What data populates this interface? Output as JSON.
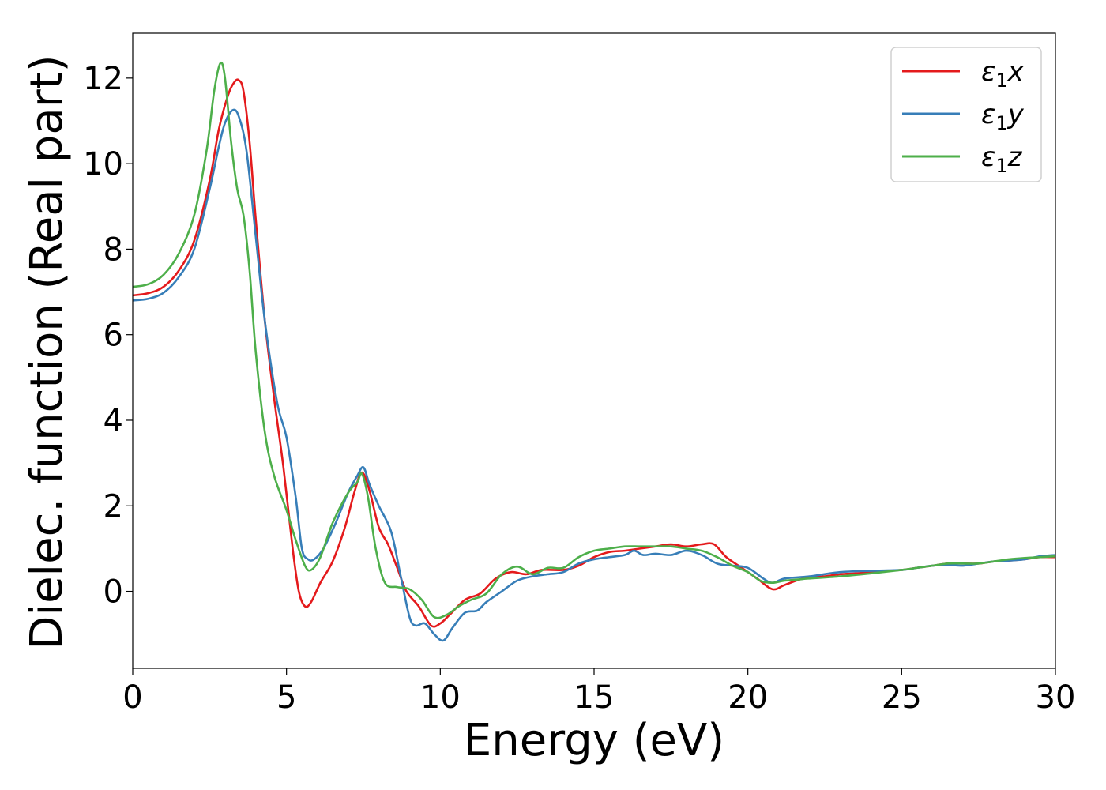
{
  "chart_data": {
    "type": "line",
    "xlabel": "Energy (eV)",
    "ylabel": "Dielec. function (Real part)",
    "xlim": [
      0,
      30
    ],
    "ylim": [
      -1.8,
      13.05
    ],
    "xticks": [
      0,
      5,
      10,
      15,
      20,
      25,
      30
    ],
    "yticks": [
      0,
      2,
      4,
      6,
      8,
      10,
      12
    ],
    "grid": false,
    "legend_position": "top-right",
    "series": [
      {
        "name": "ε₁x",
        "legend_base": "ε",
        "legend_sub": "1",
        "legend_suffix": "x",
        "color": "#e41a1c",
        "points": [
          [
            0,
            6.92
          ],
          [
            0.5,
            6.97
          ],
          [
            1,
            7.12
          ],
          [
            1.5,
            7.5
          ],
          [
            2,
            8.2
          ],
          [
            2.5,
            9.6
          ],
          [
            2.8,
            10.8
          ],
          [
            3.1,
            11.6
          ],
          [
            3.3,
            11.9
          ],
          [
            3.45,
            11.95
          ],
          [
            3.6,
            11.7
          ],
          [
            3.8,
            10.5
          ],
          [
            4.0,
            8.7
          ],
          [
            4.3,
            6.3
          ],
          [
            4.6,
            4.5
          ],
          [
            4.9,
            2.9
          ],
          [
            5.2,
            1.0
          ],
          [
            5.4,
            0.0
          ],
          [
            5.6,
            -0.35
          ],
          [
            5.8,
            -0.25
          ],
          [
            6.1,
            0.2
          ],
          [
            6.5,
            0.7
          ],
          [
            6.9,
            1.5
          ],
          [
            7.2,
            2.3
          ],
          [
            7.45,
            2.78
          ],
          [
            7.7,
            2.35
          ],
          [
            8.0,
            1.5
          ],
          [
            8.3,
            1.1
          ],
          [
            8.6,
            0.55
          ],
          [
            8.9,
            0.0
          ],
          [
            9.3,
            -0.35
          ],
          [
            9.7,
            -0.8
          ],
          [
            10.0,
            -0.75
          ],
          [
            10.3,
            -0.55
          ],
          [
            10.8,
            -0.2
          ],
          [
            11.3,
            -0.05
          ],
          [
            11.8,
            0.3
          ],
          [
            12.3,
            0.45
          ],
          [
            12.8,
            0.4
          ],
          [
            13.3,
            0.5
          ],
          [
            14.0,
            0.5
          ],
          [
            14.5,
            0.6
          ],
          [
            15.0,
            0.8
          ],
          [
            15.5,
            0.92
          ],
          [
            16.0,
            0.95
          ],
          [
            16.5,
            1.0
          ],
          [
            17.0,
            1.05
          ],
          [
            17.5,
            1.1
          ],
          [
            18.0,
            1.05
          ],
          [
            18.5,
            1.1
          ],
          [
            18.9,
            1.1
          ],
          [
            19.3,
            0.8
          ],
          [
            19.8,
            0.55
          ],
          [
            20.3,
            0.3
          ],
          [
            20.8,
            0.05
          ],
          [
            21.2,
            0.15
          ],
          [
            21.8,
            0.3
          ],
          [
            22.5,
            0.35
          ],
          [
            23.0,
            0.4
          ],
          [
            23.5,
            0.42
          ],
          [
            24.0,
            0.45
          ],
          [
            24.5,
            0.48
          ],
          [
            25.0,
            0.5
          ],
          [
            25.5,
            0.55
          ],
          [
            26.0,
            0.6
          ],
          [
            26.5,
            0.65
          ],
          [
            27.0,
            0.65
          ],
          [
            27.5,
            0.65
          ],
          [
            28.0,
            0.7
          ],
          [
            28.5,
            0.72
          ],
          [
            29.0,
            0.75
          ],
          [
            29.5,
            0.8
          ],
          [
            30.0,
            0.8
          ]
        ]
      },
      {
        "name": "ε₁y",
        "legend_base": "ε",
        "legend_sub": "1",
        "legend_suffix": "y",
        "color": "#377eb8",
        "points": [
          [
            0,
            6.8
          ],
          [
            0.5,
            6.84
          ],
          [
            1,
            6.98
          ],
          [
            1.5,
            7.35
          ],
          [
            2,
            8.0
          ],
          [
            2.5,
            9.4
          ],
          [
            2.8,
            10.4
          ],
          [
            3.0,
            10.95
          ],
          [
            3.25,
            11.25
          ],
          [
            3.45,
            11.1
          ],
          [
            3.7,
            10.3
          ],
          [
            4.0,
            8.3
          ],
          [
            4.3,
            6.3
          ],
          [
            4.7,
            4.4
          ],
          [
            5.0,
            3.6
          ],
          [
            5.3,
            2.2
          ],
          [
            5.5,
            1.0
          ],
          [
            5.7,
            0.75
          ],
          [
            5.9,
            0.75
          ],
          [
            6.2,
            1.0
          ],
          [
            6.6,
            1.6
          ],
          [
            7.0,
            2.3
          ],
          [
            7.3,
            2.7
          ],
          [
            7.5,
            2.9
          ],
          [
            7.7,
            2.5
          ],
          [
            8.0,
            2.0
          ],
          [
            8.4,
            1.4
          ],
          [
            8.7,
            0.4
          ],
          [
            9.0,
            -0.6
          ],
          [
            9.2,
            -0.8
          ],
          [
            9.5,
            -0.75
          ],
          [
            9.8,
            -1.0
          ],
          [
            10.1,
            -1.15
          ],
          [
            10.4,
            -0.85
          ],
          [
            10.8,
            -0.5
          ],
          [
            11.2,
            -0.45
          ],
          [
            11.5,
            -0.25
          ],
          [
            12.0,
            0.0
          ],
          [
            12.5,
            0.25
          ],
          [
            13.0,
            0.35
          ],
          [
            13.5,
            0.4
          ],
          [
            14.0,
            0.45
          ],
          [
            14.5,
            0.65
          ],
          [
            15.0,
            0.75
          ],
          [
            15.5,
            0.8
          ],
          [
            16.0,
            0.85
          ],
          [
            16.3,
            0.95
          ],
          [
            16.6,
            0.85
          ],
          [
            17.0,
            0.88
          ],
          [
            17.5,
            0.85
          ],
          [
            18.0,
            0.95
          ],
          [
            18.5,
            0.85
          ],
          [
            19.0,
            0.65
          ],
          [
            19.5,
            0.6
          ],
          [
            20.0,
            0.55
          ],
          [
            20.5,
            0.3
          ],
          [
            20.8,
            0.2
          ],
          [
            21.2,
            0.3
          ],
          [
            22.0,
            0.35
          ],
          [
            23.0,
            0.45
          ],
          [
            24.0,
            0.48
          ],
          [
            25.0,
            0.5
          ],
          [
            25.5,
            0.55
          ],
          [
            26.0,
            0.6
          ],
          [
            26.5,
            0.62
          ],
          [
            27.0,
            0.6
          ],
          [
            27.5,
            0.65
          ],
          [
            28.0,
            0.7
          ],
          [
            28.5,
            0.72
          ],
          [
            29.0,
            0.75
          ],
          [
            29.5,
            0.82
          ],
          [
            30.0,
            0.85
          ]
        ]
      },
      {
        "name": "ε₁z",
        "legend_base": "ε",
        "legend_sub": "1",
        "legend_suffix": "z",
        "color": "#4daf4a",
        "points": [
          [
            0,
            7.12
          ],
          [
            0.5,
            7.18
          ],
          [
            1,
            7.4
          ],
          [
            1.5,
            7.9
          ],
          [
            2,
            8.8
          ],
          [
            2.4,
            10.3
          ],
          [
            2.65,
            11.7
          ],
          [
            2.85,
            12.35
          ],
          [
            3.0,
            12.0
          ],
          [
            3.2,
            10.5
          ],
          [
            3.4,
            9.4
          ],
          [
            3.6,
            8.8
          ],
          [
            3.8,
            7.5
          ],
          [
            4.0,
            5.6
          ],
          [
            4.3,
            3.7
          ],
          [
            4.6,
            2.7
          ],
          [
            5.0,
            1.9
          ],
          [
            5.3,
            1.2
          ],
          [
            5.6,
            0.6
          ],
          [
            5.8,
            0.5
          ],
          [
            6.1,
            0.8
          ],
          [
            6.5,
            1.6
          ],
          [
            7.0,
            2.3
          ],
          [
            7.3,
            2.55
          ],
          [
            7.45,
            2.75
          ],
          [
            7.65,
            2.2
          ],
          [
            7.9,
            1.0
          ],
          [
            8.2,
            0.2
          ],
          [
            8.6,
            0.1
          ],
          [
            9.0,
            0.05
          ],
          [
            9.4,
            -0.2
          ],
          [
            9.8,
            -0.6
          ],
          [
            10.2,
            -0.55
          ],
          [
            10.6,
            -0.35
          ],
          [
            11.0,
            -0.2
          ],
          [
            11.5,
            -0.05
          ],
          [
            12.0,
            0.4
          ],
          [
            12.5,
            0.58
          ],
          [
            13.0,
            0.4
          ],
          [
            13.5,
            0.55
          ],
          [
            14.0,
            0.55
          ],
          [
            14.5,
            0.8
          ],
          [
            15.0,
            0.95
          ],
          [
            15.5,
            1.0
          ],
          [
            16.0,
            1.05
          ],
          [
            16.5,
            1.05
          ],
          [
            17.0,
            1.05
          ],
          [
            17.5,
            1.05
          ],
          [
            18.0,
            1.0
          ],
          [
            18.5,
            0.95
          ],
          [
            19.0,
            0.8
          ],
          [
            19.5,
            0.6
          ],
          [
            20.0,
            0.45
          ],
          [
            20.4,
            0.25
          ],
          [
            20.8,
            0.2
          ],
          [
            21.2,
            0.25
          ],
          [
            22.0,
            0.3
          ],
          [
            23.0,
            0.35
          ],
          [
            24.0,
            0.42
          ],
          [
            25.0,
            0.5
          ],
          [
            25.5,
            0.55
          ],
          [
            26.0,
            0.6
          ],
          [
            26.5,
            0.65
          ],
          [
            27.0,
            0.65
          ],
          [
            27.5,
            0.65
          ],
          [
            28.0,
            0.7
          ],
          [
            28.5,
            0.75
          ],
          [
            29.0,
            0.78
          ],
          [
            29.5,
            0.8
          ],
          [
            30.0,
            0.82
          ]
        ]
      }
    ]
  }
}
